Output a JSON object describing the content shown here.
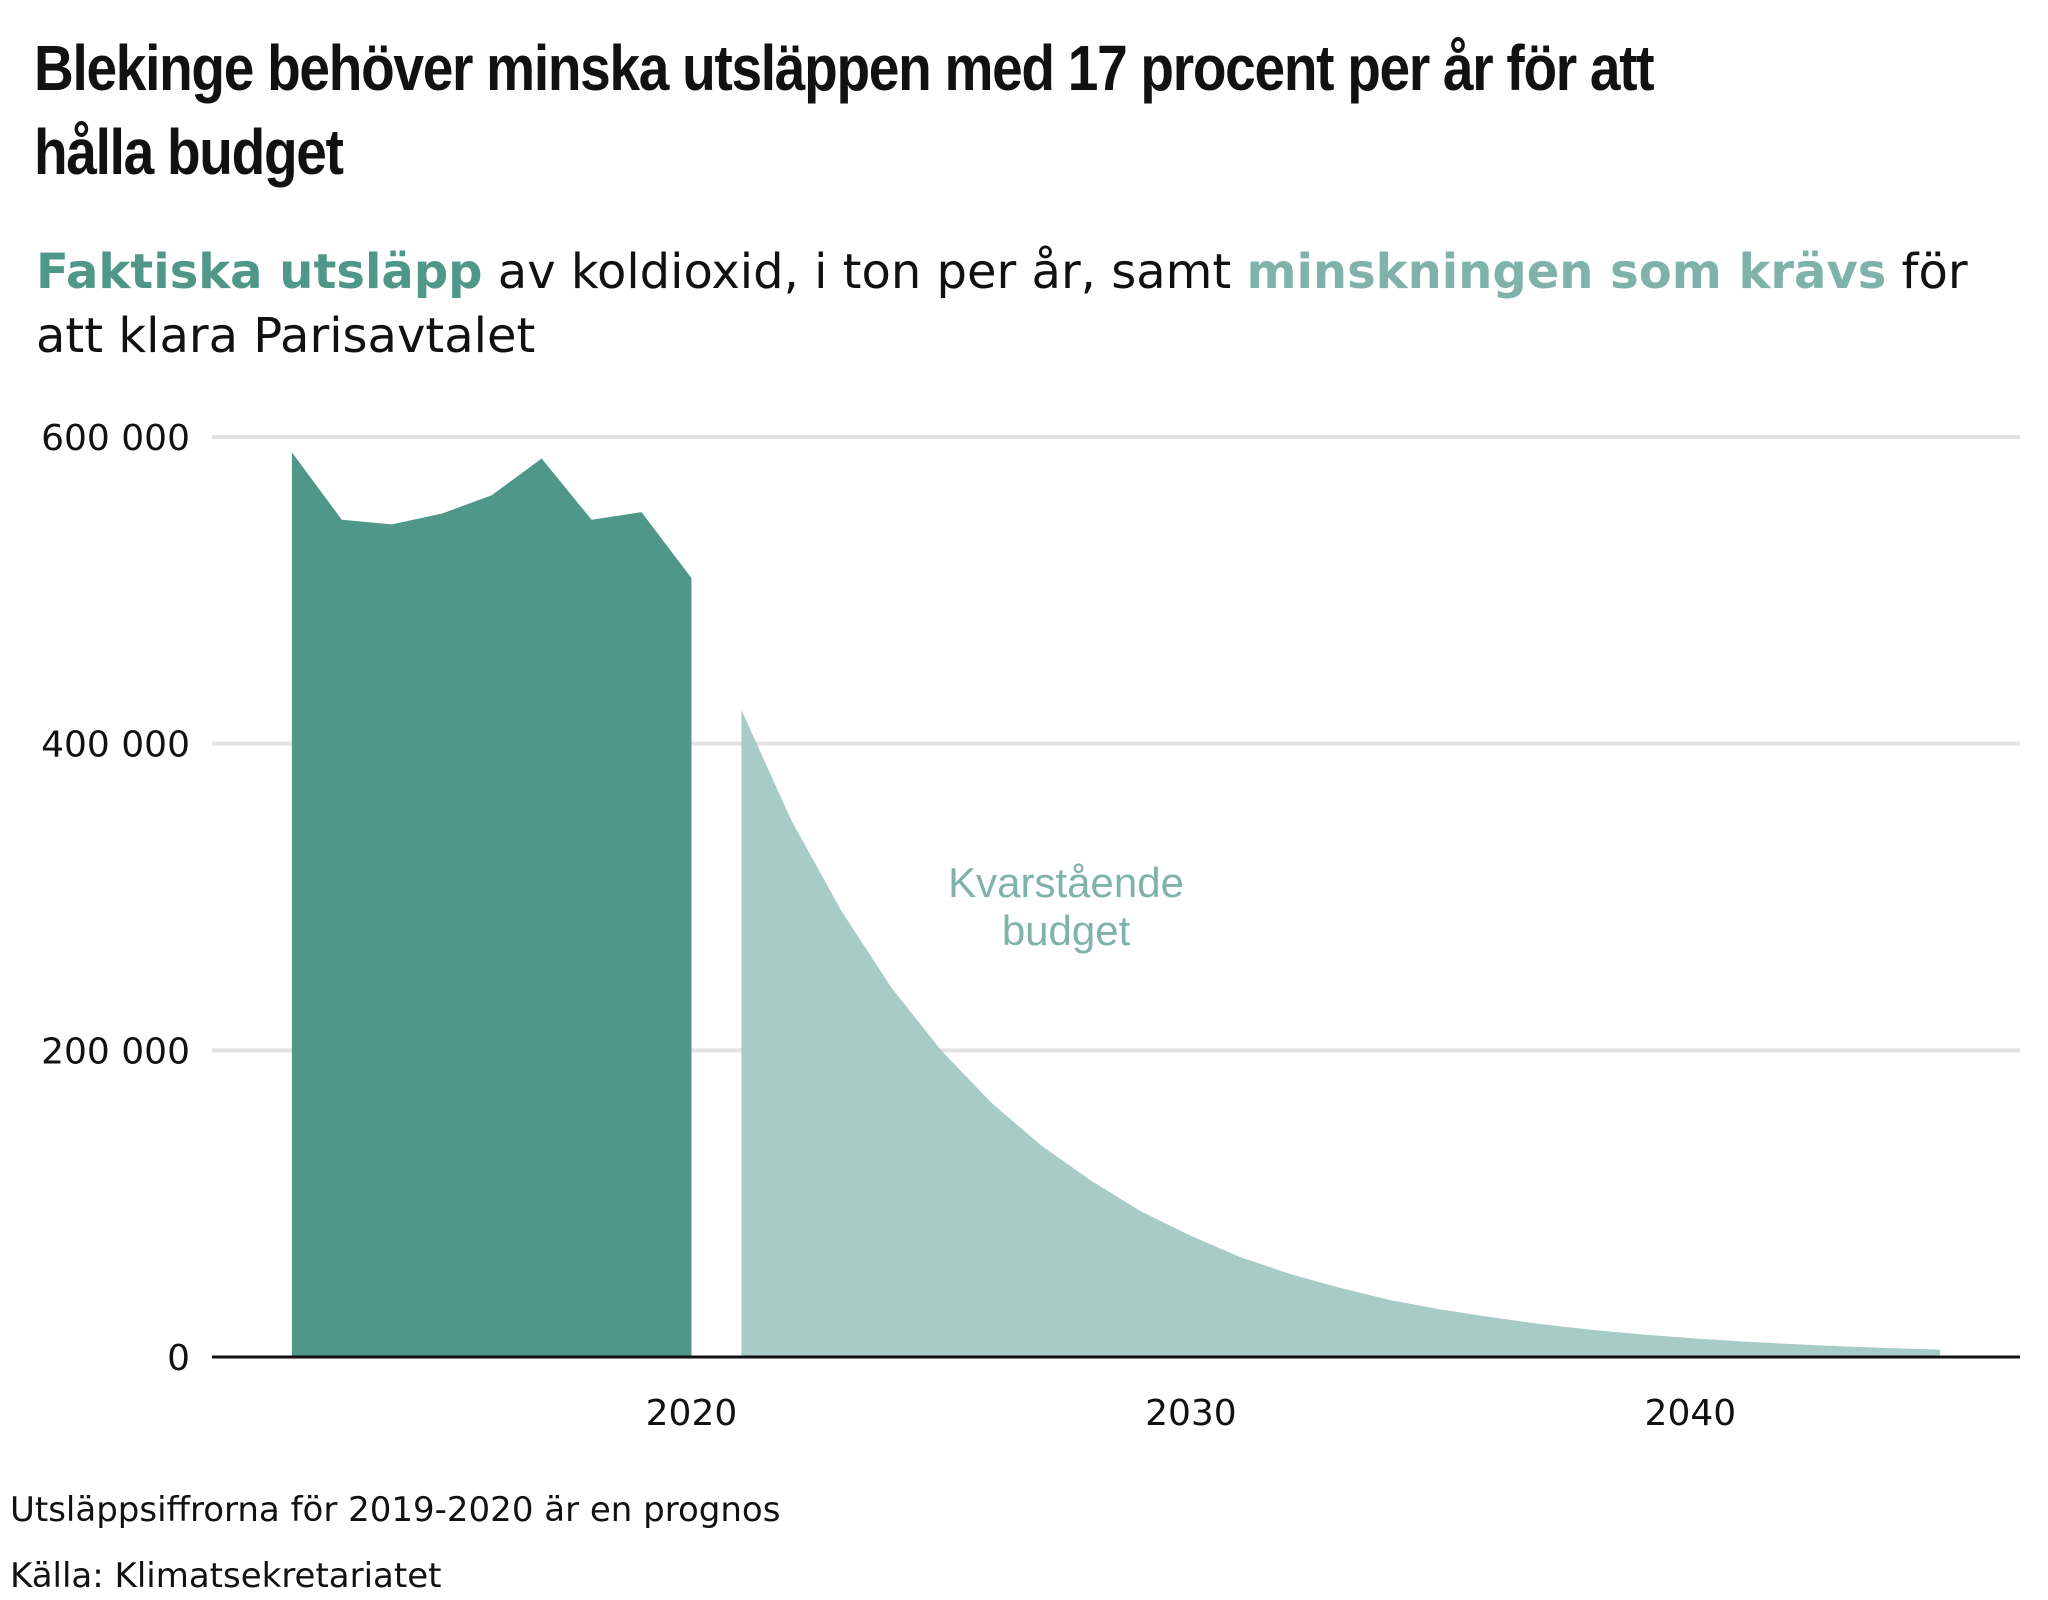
{
  "title": "Blekinge behöver minska utsläppen med 17 procent per år för att hålla budget",
  "subtitle": {
    "part1_highlight": "Faktiska utsläpp",
    "part2": " av koldioxid, i ton per år, samt ",
    "part3_highlight": "minskningen som krävs",
    "part4": " för att klara Parisavtalet"
  },
  "footer": {
    "note": "Utsläppsiffrorna för 2019-2020 är en prognos",
    "source": "Källa: Klimatsekretariatet"
  },
  "colors": {
    "actual": "#4f9789",
    "budget": "#a7cbc5",
    "budget_label": "#7fb3aa",
    "grid": "#e3e3e3",
    "axis": "#111111"
  },
  "chart_data": {
    "type": "area",
    "xlim": [
      2010.4,
      2046.6
    ],
    "ylim": [
      0,
      600000
    ],
    "y_ticks": [
      {
        "value": 0,
        "label": "0"
      },
      {
        "value": 200000,
        "label": "200 000"
      },
      {
        "value": 400000,
        "label": "400 000"
      },
      {
        "value": 600000,
        "label": "600 000"
      }
    ],
    "x_ticks": [
      {
        "value": 2020,
        "label": "2020"
      },
      {
        "value": 2030,
        "label": "2030"
      },
      {
        "value": 2040,
        "label": "2040"
      }
    ],
    "grid": true,
    "annotation": {
      "lines": [
        "Kvarstående",
        "budget"
      ],
      "x": 2027.5,
      "y": 300000
    },
    "series": [
      {
        "name": "Faktiska utsläpp",
        "x": [
          2012,
          2013,
          2014,
          2015,
          2016,
          2017,
          2018,
          2019,
          2020
        ],
        "values": [
          590000,
          546000,
          543000,
          550000,
          562000,
          586000,
          546000,
          551000,
          508000
        ]
      },
      {
        "name": "minskningen som krävs",
        "x": [
          2021,
          2022,
          2023,
          2024,
          2025,
          2026,
          2027,
          2028,
          2029,
          2030,
          2031,
          2032,
          2033,
          2034,
          2035,
          2036,
          2037,
          2038,
          2039,
          2040,
          2041,
          2042,
          2043,
          2044,
          2045
        ],
        "values": [
          422000,
          350000,
          291000,
          241000,
          200000,
          166000,
          138000,
          115000,
          95000,
          79000,
          65000,
          54000,
          45000,
          37000,
          31000,
          26000,
          21500,
          17800,
          14800,
          12300,
          10200,
          8500,
          7000,
          5800,
          4800
        ]
      }
    ]
  }
}
